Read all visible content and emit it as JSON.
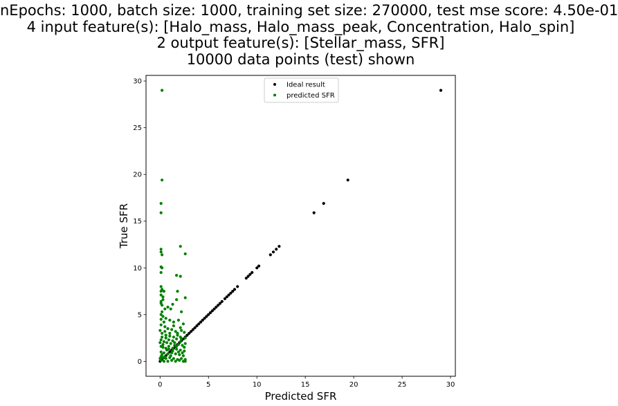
{
  "figure": {
    "title_lines": [
      "nEpochs: 1000, batch size: 1000, training set size: 270000, test mse score: 4.50e-01",
      "4 input feature(s): [Halo_mass, Halo_mass_peak, Concentration, Halo_spin]",
      "2 output feature(s): [Stellar_mass, SFR]",
      "10000 data points (test) shown"
    ]
  },
  "chart_data": {
    "type": "scatter",
    "xlabel": "Predicted SFR",
    "ylabel": "True SFR",
    "xlim": [
      -1.45,
      30.5
    ],
    "ylim": [
      -1.6,
      30.6
    ],
    "xticks": [
      0,
      5,
      10,
      15,
      20,
      25,
      30
    ],
    "yticks": [
      0,
      5,
      10,
      15,
      20,
      25,
      30
    ],
    "grid": false,
    "legend_position": "top-center",
    "series": [
      {
        "name": "Ideal result",
        "color": "#000000",
        "points": [
          [
            0.0,
            0.0
          ],
          [
            0.2,
            0.2
          ],
          [
            0.4,
            0.4
          ],
          [
            0.6,
            0.6
          ],
          [
            0.8,
            0.8
          ],
          [
            1.0,
            1.0
          ],
          [
            1.2,
            1.2
          ],
          [
            1.4,
            1.4
          ],
          [
            1.6,
            1.6
          ],
          [
            1.8,
            1.8
          ],
          [
            2.0,
            2.0
          ],
          [
            2.2,
            2.2
          ],
          [
            2.4,
            2.4
          ],
          [
            2.6,
            2.6
          ],
          [
            2.8,
            2.8
          ],
          [
            3.0,
            3.0
          ],
          [
            3.2,
            3.2
          ],
          [
            3.4,
            3.4
          ],
          [
            3.6,
            3.6
          ],
          [
            3.8,
            3.8
          ],
          [
            4.0,
            4.0
          ],
          [
            4.2,
            4.2
          ],
          [
            4.4,
            4.4
          ],
          [
            4.6,
            4.6
          ],
          [
            4.8,
            4.8
          ],
          [
            5.0,
            5.0
          ],
          [
            5.2,
            5.2
          ],
          [
            5.4,
            5.4
          ],
          [
            5.6,
            5.6
          ],
          [
            5.8,
            5.8
          ],
          [
            6.0,
            6.0
          ],
          [
            6.2,
            6.2
          ],
          [
            6.4,
            6.4
          ],
          [
            6.7,
            6.7
          ],
          [
            6.9,
            6.9
          ],
          [
            7.1,
            7.1
          ],
          [
            7.3,
            7.3
          ],
          [
            7.5,
            7.5
          ],
          [
            7.7,
            7.7
          ],
          [
            8.0,
            8.0
          ],
          [
            8.9,
            8.9
          ],
          [
            9.1,
            9.1
          ],
          [
            9.3,
            9.3
          ],
          [
            9.5,
            9.5
          ],
          [
            10.0,
            10.0
          ],
          [
            10.2,
            10.2
          ],
          [
            11.4,
            11.4
          ],
          [
            11.7,
            11.7
          ],
          [
            12.0,
            12.0
          ],
          [
            12.3,
            12.3
          ],
          [
            15.9,
            15.9
          ],
          [
            16.9,
            16.9
          ],
          [
            19.4,
            19.4
          ],
          [
            29.0,
            29.0
          ]
        ]
      },
      {
        "name": "predicted SFR",
        "color": "#008000",
        "points": [
          [
            0.2,
            29.0
          ],
          [
            0.2,
            19.4
          ],
          [
            0.1,
            16.9
          ],
          [
            0.1,
            15.9
          ],
          [
            0.1,
            12.0
          ],
          [
            0.1,
            11.7
          ],
          [
            0.2,
            11.4
          ],
          [
            2.1,
            12.3
          ],
          [
            2.6,
            11.5
          ],
          [
            0.1,
            10.1
          ],
          [
            0.2,
            10.0
          ],
          [
            0.1,
            9.5
          ],
          [
            1.7,
            9.2
          ],
          [
            2.1,
            9.1
          ],
          [
            0.1,
            8.0
          ],
          [
            0.2,
            7.7
          ],
          [
            0.1,
            7.5
          ],
          [
            0.4,
            7.5
          ],
          [
            1.8,
            7.5
          ],
          [
            0.1,
            7.1
          ],
          [
            0.3,
            6.9
          ],
          [
            1.7,
            6.6
          ],
          [
            0.1,
            6.4
          ],
          [
            2.6,
            6.8
          ],
          [
            0.1,
            6.2
          ],
          [
            0.2,
            6.0
          ],
          [
            1.3,
            6.1
          ],
          [
            0.8,
            5.8
          ],
          [
            1.1,
            5.6
          ],
          [
            2.2,
            5.3
          ],
          [
            0.1,
            5.0
          ],
          [
            0.3,
            4.8
          ],
          [
            0.6,
            4.6
          ],
          [
            1.0,
            4.4
          ],
          [
            1.4,
            4.2
          ],
          [
            1.9,
            4.4
          ],
          [
            2.4,
            4.0
          ],
          [
            0.1,
            3.9
          ],
          [
            0.5,
            3.7
          ],
          [
            0.8,
            3.5
          ],
          [
            1.2,
            3.4
          ],
          [
            1.6,
            3.2
          ],
          [
            2.1,
            3.6
          ],
          [
            2.5,
            3.1
          ],
          [
            0.2,
            3.0
          ],
          [
            0.6,
            2.8
          ],
          [
            1.0,
            2.7
          ],
          [
            1.4,
            2.6
          ],
          [
            1.8,
            2.8
          ],
          [
            2.2,
            2.4
          ],
          [
            2.6,
            2.5
          ],
          [
            0.1,
            2.3
          ],
          [
            0.4,
            2.1
          ],
          [
            0.7,
            2.0
          ],
          [
            1.1,
            1.9
          ],
          [
            1.5,
            2.0
          ],
          [
            1.9,
            1.8
          ],
          [
            2.3,
            1.7
          ],
          [
            2.6,
            1.9
          ],
          [
            0.1,
            1.6
          ],
          [
            0.3,
            1.5
          ],
          [
            0.6,
            1.4
          ],
          [
            0.9,
            1.3
          ],
          [
            1.3,
            1.4
          ],
          [
            1.7,
            1.3
          ],
          [
            2.1,
            1.2
          ],
          [
            2.5,
            1.1
          ],
          [
            0.1,
            1.0
          ],
          [
            0.4,
            0.9
          ],
          [
            0.8,
            0.8
          ],
          [
            1.2,
            0.9
          ],
          [
            1.6,
            0.8
          ],
          [
            2.0,
            0.7
          ],
          [
            2.4,
            0.6
          ],
          [
            0.1,
            0.5
          ],
          [
            0.3,
            0.4
          ],
          [
            0.6,
            0.3
          ],
          [
            1.0,
            0.4
          ],
          [
            1.4,
            0.3
          ],
          [
            1.8,
            0.2
          ],
          [
            2.2,
            0.3
          ],
          [
            2.6,
            0.2
          ],
          [
            0.1,
            0.1
          ],
          [
            0.4,
            0.0
          ],
          [
            0.8,
            0.0
          ],
          [
            1.2,
            0.1
          ],
          [
            1.6,
            0.0
          ],
          [
            2.0,
            0.1
          ],
          [
            2.4,
            0.0
          ],
          [
            2.6,
            0.0
          ],
          [
            0.2,
            2.6
          ],
          [
            0.5,
            3.2
          ],
          [
            0.9,
            2.3
          ],
          [
            1.3,
            1.1
          ],
          [
            1.7,
            1.6
          ],
          [
            2.1,
            2.1
          ],
          [
            2.5,
            1.5
          ],
          [
            0.3,
            1.8
          ],
          [
            0.7,
            1.2
          ],
          [
            1.1,
            0.6
          ],
          [
            1.5,
            1.7
          ],
          [
            1.9,
            1.0
          ],
          [
            2.3,
            0.9
          ],
          [
            0.2,
            0.7
          ],
          [
            0.5,
            0.5
          ],
          [
            0.9,
            1.6
          ],
          [
            1.3,
            2.2
          ],
          [
            1.7,
            2.4
          ],
          [
            2.1,
            2.6
          ],
          [
            0.4,
            4.2
          ],
          [
            0.2,
            5.3
          ],
          [
            0.3,
            6.6
          ],
          [
            0.0,
            3.3
          ],
          [
            0.0,
            2.0
          ],
          [
            0.0,
            0.3
          ],
          [
            0.6,
            2.5
          ],
          [
            1.0,
            3.0
          ],
          [
            1.4,
            3.8
          ],
          [
            1.8,
            3.0
          ],
          [
            2.2,
            3.3
          ],
          [
            0.1,
            4.5
          ],
          [
            0.5,
            5.6
          ]
        ]
      }
    ]
  }
}
